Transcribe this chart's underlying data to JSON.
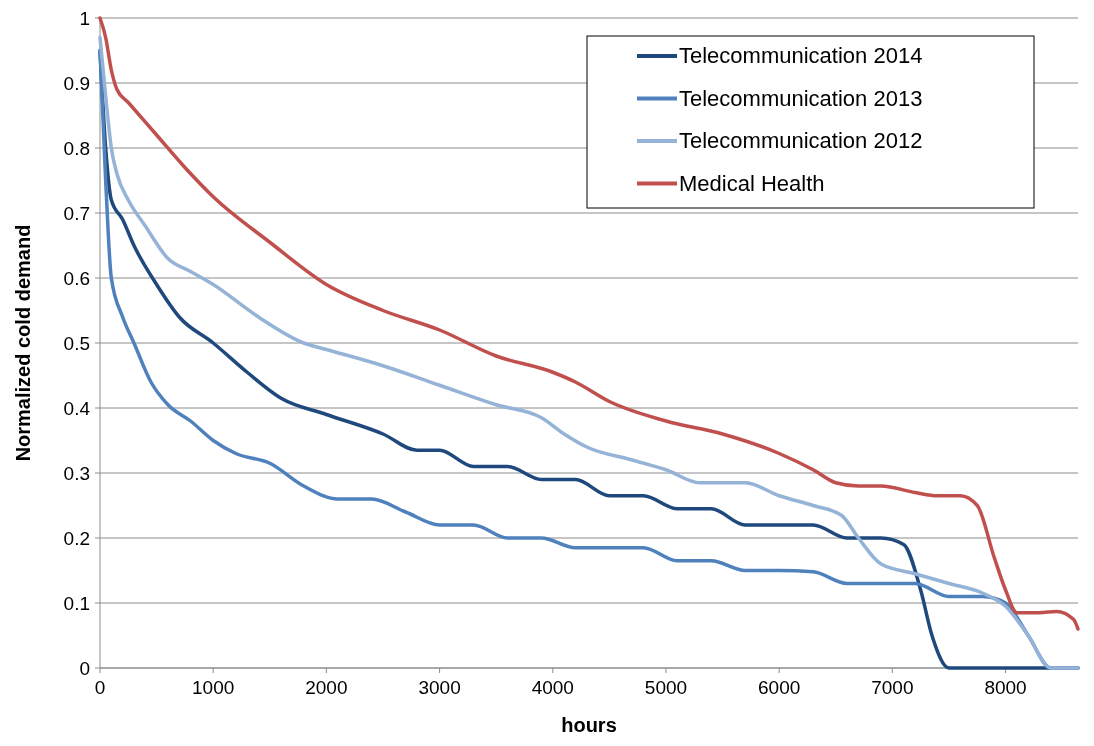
{
  "chart_data": {
    "type": "line",
    "xlabel": "hours",
    "ylabel": "Normalized cold demand",
    "xlim": [
      0,
      8640
    ],
    "xticks": [
      0,
      1000,
      2000,
      3000,
      4000,
      5000,
      6000,
      7000,
      8000
    ],
    "ylim": [
      0,
      1
    ],
    "yticks": [
      0,
      0.1,
      0.2,
      0.3,
      0.4,
      0.5,
      0.6,
      0.7,
      0.8,
      0.9,
      1
    ],
    "grid": "y",
    "legend": "top right",
    "marker": "none",
    "line_style": "solid",
    "series": [
      {
        "name": "Telecommunication 2014",
        "color": "#1f497d",
        "x": [
          0,
          50,
          100,
          200,
          300,
          500,
          700,
          1000,
          1300,
          1600,
          2000,
          2500,
          2800,
          3000,
          3300,
          3600,
          3900,
          4200,
          4500,
          4800,
          5100,
          5400,
          5700,
          6000,
          6300,
          6600,
          6900,
          7100,
          7250,
          7350,
          7500,
          8640
        ],
        "values": [
          0.95,
          0.8,
          0.72,
          0.69,
          0.65,
          0.59,
          0.54,
          0.5,
          0.455,
          0.415,
          0.39,
          0.36,
          0.335,
          0.335,
          0.31,
          0.31,
          0.29,
          0.29,
          0.265,
          0.265,
          0.245,
          0.245,
          0.22,
          0.22,
          0.22,
          0.2,
          0.2,
          0.19,
          0.12,
          0.05,
          0,
          0
        ]
      },
      {
        "name": "Telecommunication 2013",
        "color": "#4f81bd",
        "x": [
          0,
          50,
          100,
          200,
          300,
          450,
          600,
          800,
          1000,
          1200,
          1500,
          1800,
          2100,
          2400,
          2700,
          3000,
          3300,
          3600,
          3900,
          4200,
          4500,
          4800,
          5100,
          5400,
          5700,
          6000,
          6300,
          6600,
          6900,
          7200,
          7500,
          7800,
          8000,
          8200,
          8400,
          8640
        ],
        "values": [
          0.95,
          0.75,
          0.6,
          0.54,
          0.5,
          0.44,
          0.405,
          0.38,
          0.35,
          0.33,
          0.315,
          0.28,
          0.26,
          0.26,
          0.24,
          0.22,
          0.22,
          0.2,
          0.2,
          0.185,
          0.185,
          0.185,
          0.165,
          0.165,
          0.15,
          0.15,
          0.148,
          0.13,
          0.13,
          0.13,
          0.11,
          0.11,
          0.1,
          0.05,
          0,
          0
        ]
      },
      {
        "name": "Telecommunication 2012",
        "color": "#95b3d7",
        "x": [
          0,
          50,
          100,
          150,
          250,
          400,
          600,
          800,
          1000,
          1400,
          1800,
          2000,
          2500,
          3000,
          3500,
          3900,
          4100,
          4300,
          4700,
          5000,
          5300,
          5700,
          6000,
          6300,
          6550,
          6700,
          6900,
          7200,
          7500,
          7800,
          8000,
          8200,
          8400,
          8640
        ],
        "values": [
          0.97,
          0.88,
          0.8,
          0.76,
          0.72,
          0.68,
          0.63,
          0.61,
          0.59,
          0.54,
          0.5,
          0.49,
          0.465,
          0.435,
          0.405,
          0.385,
          0.36,
          0.34,
          0.32,
          0.305,
          0.285,
          0.285,
          0.265,
          0.25,
          0.235,
          0.2,
          0.16,
          0.145,
          0.13,
          0.115,
          0.095,
          0.05,
          0,
          0
        ]
      },
      {
        "name": "Medical Health",
        "color": "#c0504d",
        "x": [
          0,
          50,
          100,
          150,
          250,
          500,
          750,
          1000,
          1500,
          2000,
          2500,
          3000,
          3500,
          4000,
          4200,
          4500,
          5000,
          5500,
          6000,
          6300,
          6500,
          6700,
          6900,
          7200,
          7400,
          7600,
          7750,
          7900,
          8000,
          8100,
          8300,
          8450,
          8600,
          8640
        ],
        "values": [
          1,
          0.97,
          0.92,
          0.89,
          0.87,
          0.82,
          0.77,
          0.725,
          0.655,
          0.59,
          0.55,
          0.52,
          0.48,
          0.455,
          0.44,
          0.41,
          0.38,
          0.36,
          0.33,
          0.305,
          0.285,
          0.28,
          0.28,
          0.27,
          0.265,
          0.265,
          0.25,
          0.17,
          0.12,
          0.085,
          0.085,
          0.087,
          0.075,
          0.06
        ]
      }
    ]
  }
}
